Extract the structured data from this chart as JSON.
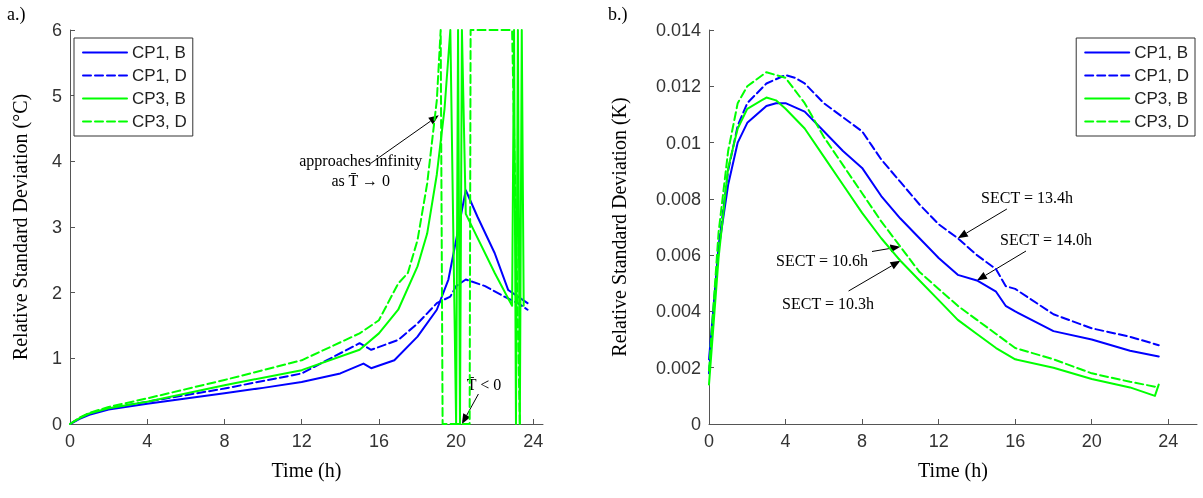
{
  "chart_data": [
    {
      "type": "line",
      "title": "a.)",
      "xlabel": "Time (h)",
      "ylabel": "Relative Standard Deviation (°C)",
      "xlim": [
        0,
        24.5
      ],
      "xticks": [
        0,
        4,
        8,
        12,
        16,
        20,
        24
      ],
      "ylim": [
        0,
        6
      ],
      "yticks": [
        0,
        1,
        2,
        3,
        4,
        5,
        6
      ],
      "grid": false,
      "legend": "top left",
      "marker": "none",
      "annotations": [
        {
          "text": "approaches infinity\nas T̄ → 0",
          "x": 19.1,
          "y": 4.7
        },
        {
          "text": "T̄ < 0",
          "x": 20.3,
          "y": 0
        }
      ],
      "series": [
        {
          "name": "CP1, B",
          "color": "#0000ff",
          "line_style": "solid",
          "x": [
            0,
            0.5,
            1,
            2,
            4,
            6,
            8,
            10,
            12,
            14,
            15.2,
            15.6,
            16.8,
            18,
            19,
            19.6,
            20,
            20.5,
            21.1,
            22,
            22.7,
            23.7
          ],
          "values": [
            0,
            0.08,
            0.14,
            0.22,
            0.31,
            0.39,
            0.47,
            0.55,
            0.64,
            0.77,
            0.92,
            0.85,
            0.97,
            1.33,
            1.74,
            2.2,
            2.8,
            3.56,
            3.16,
            2.6,
            2.04,
            1.84
          ]
        },
        {
          "name": "CP1, D",
          "color": "#0000ff",
          "line_style": "dashed",
          "x": [
            0,
            0.5,
            1,
            2,
            4,
            8,
            12,
            15,
            15.6,
            17,
            18,
            19,
            19.7,
            20,
            20.5,
            21.5,
            22.5,
            23.2,
            23.7
          ],
          "values": [
            0,
            0.09,
            0.16,
            0.24,
            0.34,
            0.54,
            0.77,
            1.23,
            1.13,
            1.28,
            1.53,
            1.84,
            1.94,
            2.1,
            2.2,
            2.1,
            1.94,
            1.84,
            1.74
          ]
        },
        {
          "name": "CP3, B",
          "color": "#00ff00",
          "line_style": "solid",
          "x": [
            0,
            0.5,
            1,
            2,
            4,
            8,
            12,
            15,
            16,
            17,
            18,
            18.5,
            19,
            19.4,
            19.7,
            20,
            20.1,
            20.2,
            20.3,
            20.5,
            21,
            22,
            22.9,
            23,
            23.1,
            23.2,
            23.3,
            23.4,
            23.5
          ],
          "values": [
            0,
            0.09,
            0.16,
            0.24,
            0.34,
            0.59,
            0.82,
            1.13,
            1.38,
            1.74,
            2.4,
            2.9,
            3.8,
            4.8,
            6,
            0,
            6,
            0,
            6,
            3.2,
            2.9,
            2.3,
            1.8,
            6,
            0,
            6,
            0,
            6,
            1.8
          ]
        },
        {
          "name": "CP3, D",
          "color": "#00ff00",
          "line_style": "dashed",
          "x": [
            0,
            0.5,
            1,
            2,
            4,
            8,
            12,
            15,
            16,
            17,
            17.5,
            18,
            18.5,
            19,
            19.2,
            19.3,
            20.7,
            20.75,
            22.9,
            23.3
          ],
          "values": [
            0,
            0.1,
            0.17,
            0.26,
            0.39,
            0.67,
            0.97,
            1.38,
            1.58,
            2.14,
            2.3,
            2.8,
            3.66,
            4.93,
            6,
            0,
            0,
            6,
            6,
            0
          ]
        }
      ]
    },
    {
      "type": "line",
      "title": "b.)",
      "xlabel": "Time (h)",
      "ylabel": "Relative Standard Deviation (K)",
      "xlim": [
        0,
        25.5
      ],
      "xticks": [
        0,
        4,
        8,
        12,
        16,
        20,
        24
      ],
      "ylim": [
        0,
        0.014
      ],
      "yticks": [
        0,
        0.002,
        0.004,
        0.006,
        0.008,
        0.01,
        0.012,
        0.014
      ],
      "grid": false,
      "legend": "top right",
      "marker": "none",
      "annotations": [
        {
          "text": "SECT = 13.4h",
          "x": 13,
          "y": 0.0066
        },
        {
          "text": "SECT = 14.0h",
          "x": 14,
          "y": 0.0051
        },
        {
          "text": "SECT = 10.6h",
          "x": 10,
          "y": 0.0063
        },
        {
          "text": "SECT = 10.3h",
          "x": 10,
          "y": 0.0058
        }
      ],
      "series": [
        {
          "name": "CP1, B",
          "color": "#0000ff",
          "line_style": "solid",
          "x": [
            0,
            0.5,
            1,
            1.5,
            2,
            3,
            3.5,
            4,
            5,
            6,
            7,
            8,
            9,
            10,
            11,
            12,
            13,
            14,
            15,
            15.5,
            16,
            18,
            20,
            22,
            23.5
          ],
          "values": [
            0.0023,
            0.0062,
            0.0085,
            0.01,
            0.0107,
            0.0113,
            0.0114,
            0.0114,
            0.0111,
            0.0104,
            0.0097,
            0.0091,
            0.0081,
            0.0073,
            0.0066,
            0.0059,
            0.0053,
            0.0051,
            0.0047,
            0.0042,
            0.004,
            0.0033,
            0.003,
            0.0026,
            0.0024
          ]
        },
        {
          "name": "CP1, D",
          "color": "#0000ff",
          "line_style": "dashed",
          "x": [
            0,
            0.5,
            1,
            1.5,
            2,
            3,
            4,
            4.5,
            5,
            6,
            7,
            8,
            8.5,
            9,
            10,
            11,
            12,
            13,
            14,
            15,
            15.5,
            16,
            18,
            20,
            22,
            23.5
          ],
          "values": [
            0.0018,
            0.0063,
            0.009,
            0.0106,
            0.0114,
            0.0121,
            0.0124,
            0.0123,
            0.0121,
            0.0114,
            0.0109,
            0.0104,
            0.0099,
            0.0094,
            0.0086,
            0.0078,
            0.0071,
            0.0066,
            0.006,
            0.0055,
            0.0049,
            0.0048,
            0.0039,
            0.0034,
            0.0031,
            0.0028
          ]
        },
        {
          "name": "CP3, B",
          "color": "#00ff00",
          "line_style": "solid",
          "x": [
            0,
            0.5,
            1,
            1.5,
            2,
            3,
            3.5,
            4,
            5,
            6,
            7,
            8,
            9,
            10,
            11,
            12,
            13,
            14,
            15,
            16,
            18,
            20,
            22,
            23.3,
            23.5
          ],
          "values": [
            0.0014,
            0.0059,
            0.0091,
            0.0105,
            0.0112,
            0.0116,
            0.0115,
            0.0112,
            0.0105,
            0.0095,
            0.0085,
            0.0075,
            0.0066,
            0.0058,
            0.0051,
            0.0044,
            0.0037,
            0.0032,
            0.0027,
            0.0023,
            0.002,
            0.0016,
            0.0013,
            0.001,
            0.0014
          ]
        },
        {
          "name": "CP3, D",
          "color": "#00ff00",
          "line_style": "dashed",
          "x": [
            0,
            0.5,
            1,
            1.5,
            2,
            3,
            3.5,
            4,
            5,
            6,
            7,
            8,
            9,
            10,
            11,
            12,
            13,
            14,
            15,
            16,
            18,
            20,
            22,
            23.5
          ],
          "values": [
            0.0019,
            0.0068,
            0.0097,
            0.0114,
            0.012,
            0.0125,
            0.0124,
            0.0123,
            0.0114,
            0.0102,
            0.0092,
            0.0082,
            0.0072,
            0.0063,
            0.0054,
            0.0048,
            0.0042,
            0.0037,
            0.0032,
            0.0027,
            0.0023,
            0.0018,
            0.0015,
            0.0013
          ]
        }
      ]
    }
  ]
}
